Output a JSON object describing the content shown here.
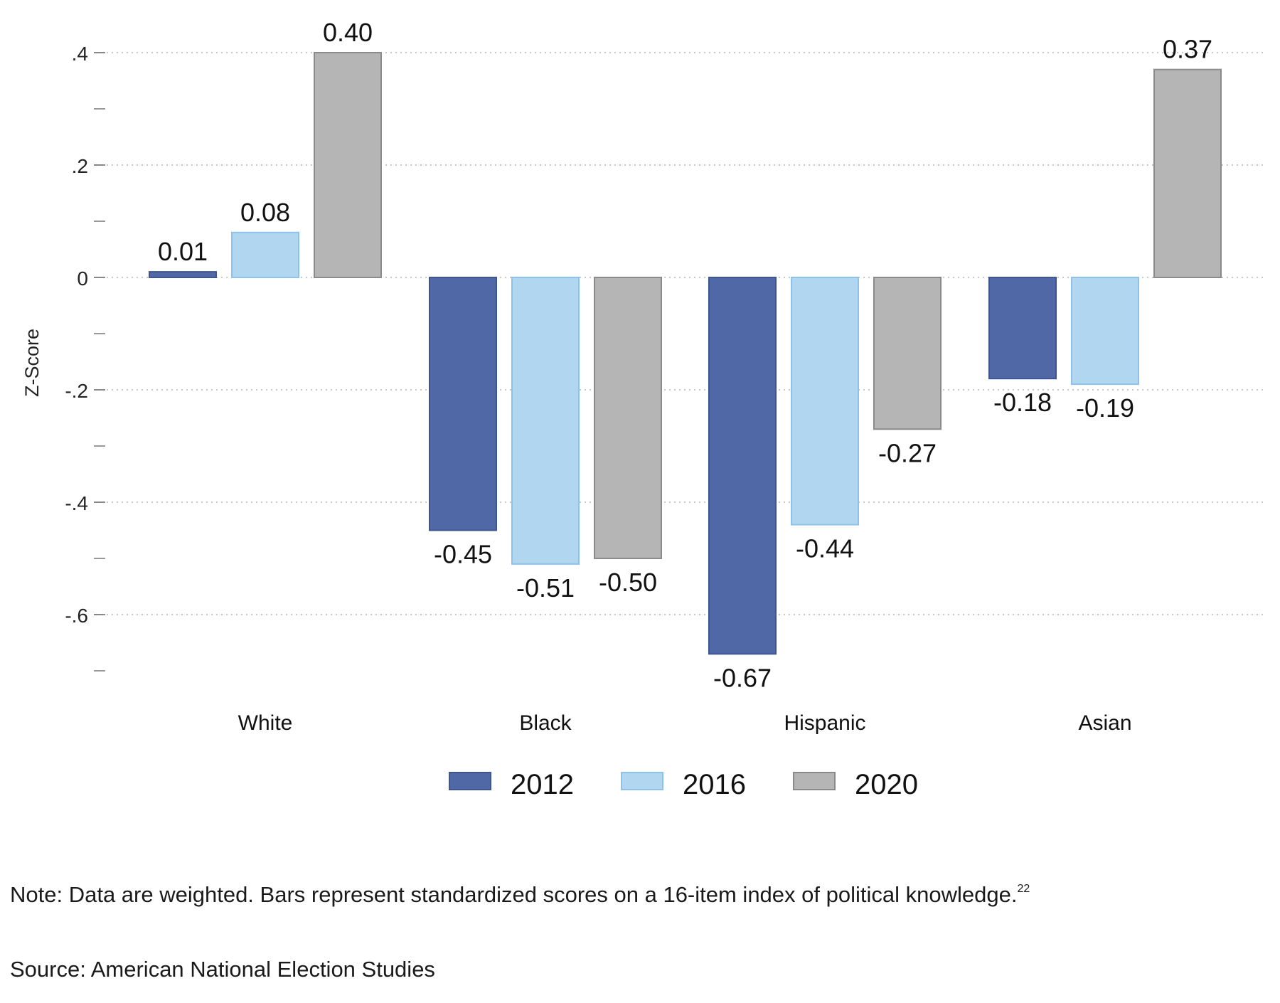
{
  "chart_data": {
    "type": "bar",
    "categories": [
      "White",
      "Black",
      "Hispanic",
      "Asian"
    ],
    "series": [
      {
        "name": "2012",
        "color": "#5068a6",
        "values": [
          0.01,
          -0.45,
          -0.67,
          -0.18
        ]
      },
      {
        "name": "2016",
        "color": "#b0d6f0",
        "values": [
          0.08,
          -0.51,
          -0.44,
          -0.19
        ]
      },
      {
        "name": "2020",
        "color": "#b5b5b5",
        "values": [
          0.4,
          -0.5,
          -0.27,
          0.37
        ]
      }
    ],
    "data_labels": [
      [
        "0.01",
        "0.08",
        "0.40"
      ],
      [
        "-0.45",
        "-0.51",
        "-0.50"
      ],
      [
        "-0.67",
        "-0.44",
        "-0.27"
      ],
      [
        "-0.18",
        "-0.19",
        "0.37"
      ]
    ],
    "title": "",
    "xlabel": "",
    "ylabel": "Z-Score",
    "ylim": [
      -0.72,
      0.4
    ],
    "yticks": [
      {
        "value": 0.4,
        "label": ".4"
      },
      {
        "value": 0.2,
        "label": ".2"
      },
      {
        "value": 0,
        "label": "0"
      },
      {
        "value": -0.2,
        "label": "-.2"
      },
      {
        "value": -0.4,
        "label": "-.4"
      },
      {
        "value": -0.6,
        "label": "-.6"
      }
    ],
    "minor_yticks": [
      0.3,
      0.1,
      -0.1,
      -0.3,
      -0.5,
      -0.7
    ],
    "grid": true,
    "legend": "bottom"
  },
  "notes": {
    "note_text": "Note: Data are weighted. Bars represent standardized scores on a 16-item index of political knowledge.",
    "note_superscript": "22",
    "source_text": "Source: American National Election Studies"
  }
}
